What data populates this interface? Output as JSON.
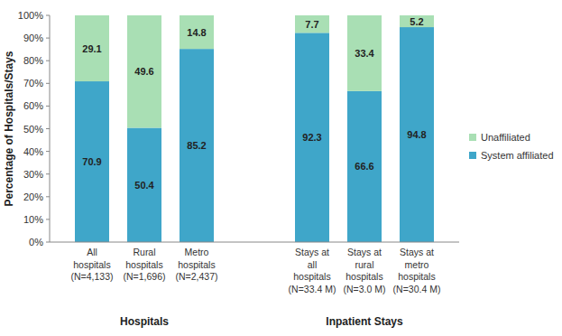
{
  "chart_data": {
    "type": "bar",
    "stacked": true,
    "data_labels": true,
    "grid": false,
    "legend": "right",
    "y_label": "Percentage of Hospitals/Stays",
    "categories": [
      "All\nhospitals\n(N=4,133)",
      "Rural\nhospitals\n(N=1,696)",
      "Metro\nhospitals\n(N=2,437)",
      "Stays at\nall\nhospitals\n(N=33.4 M)",
      "Stays at\nrural\nhospitals\n(N=3.0 M)",
      "Stays at\nmetro\nhospitals\n(N=30.4 M)"
    ],
    "groups": [
      {
        "label": "Hospitals",
        "count": 3
      },
      {
        "label": "Inpatient Stays",
        "count": 3
      }
    ],
    "series": [
      {
        "name": "System affiliated",
        "color": "#3fa6c9",
        "values": [
          70.9,
          50.4,
          85.2,
          92.3,
          66.6,
          94.8
        ]
      },
      {
        "name": "Unaffiliated",
        "color": "#a9dfb4",
        "values": [
          29.1,
          49.6,
          14.8,
          7.7,
          33.4,
          5.2
        ]
      }
    ],
    "ylim": [
      0,
      100
    ],
    "yticks": [
      {
        "value": 0,
        "label": "0%"
      },
      {
        "value": 10,
        "label": "10%"
      },
      {
        "value": 20,
        "label": "20%"
      },
      {
        "value": 30,
        "label": "30%"
      },
      {
        "value": 40,
        "label": "40%"
      },
      {
        "value": 50,
        "label": "50%"
      },
      {
        "value": 60,
        "label": "60%"
      },
      {
        "value": 70,
        "label": "70%"
      },
      {
        "value": 80,
        "label": "80%"
      },
      {
        "value": 90,
        "label": "90%"
      },
      {
        "value": 100,
        "label": "100%"
      }
    ]
  }
}
